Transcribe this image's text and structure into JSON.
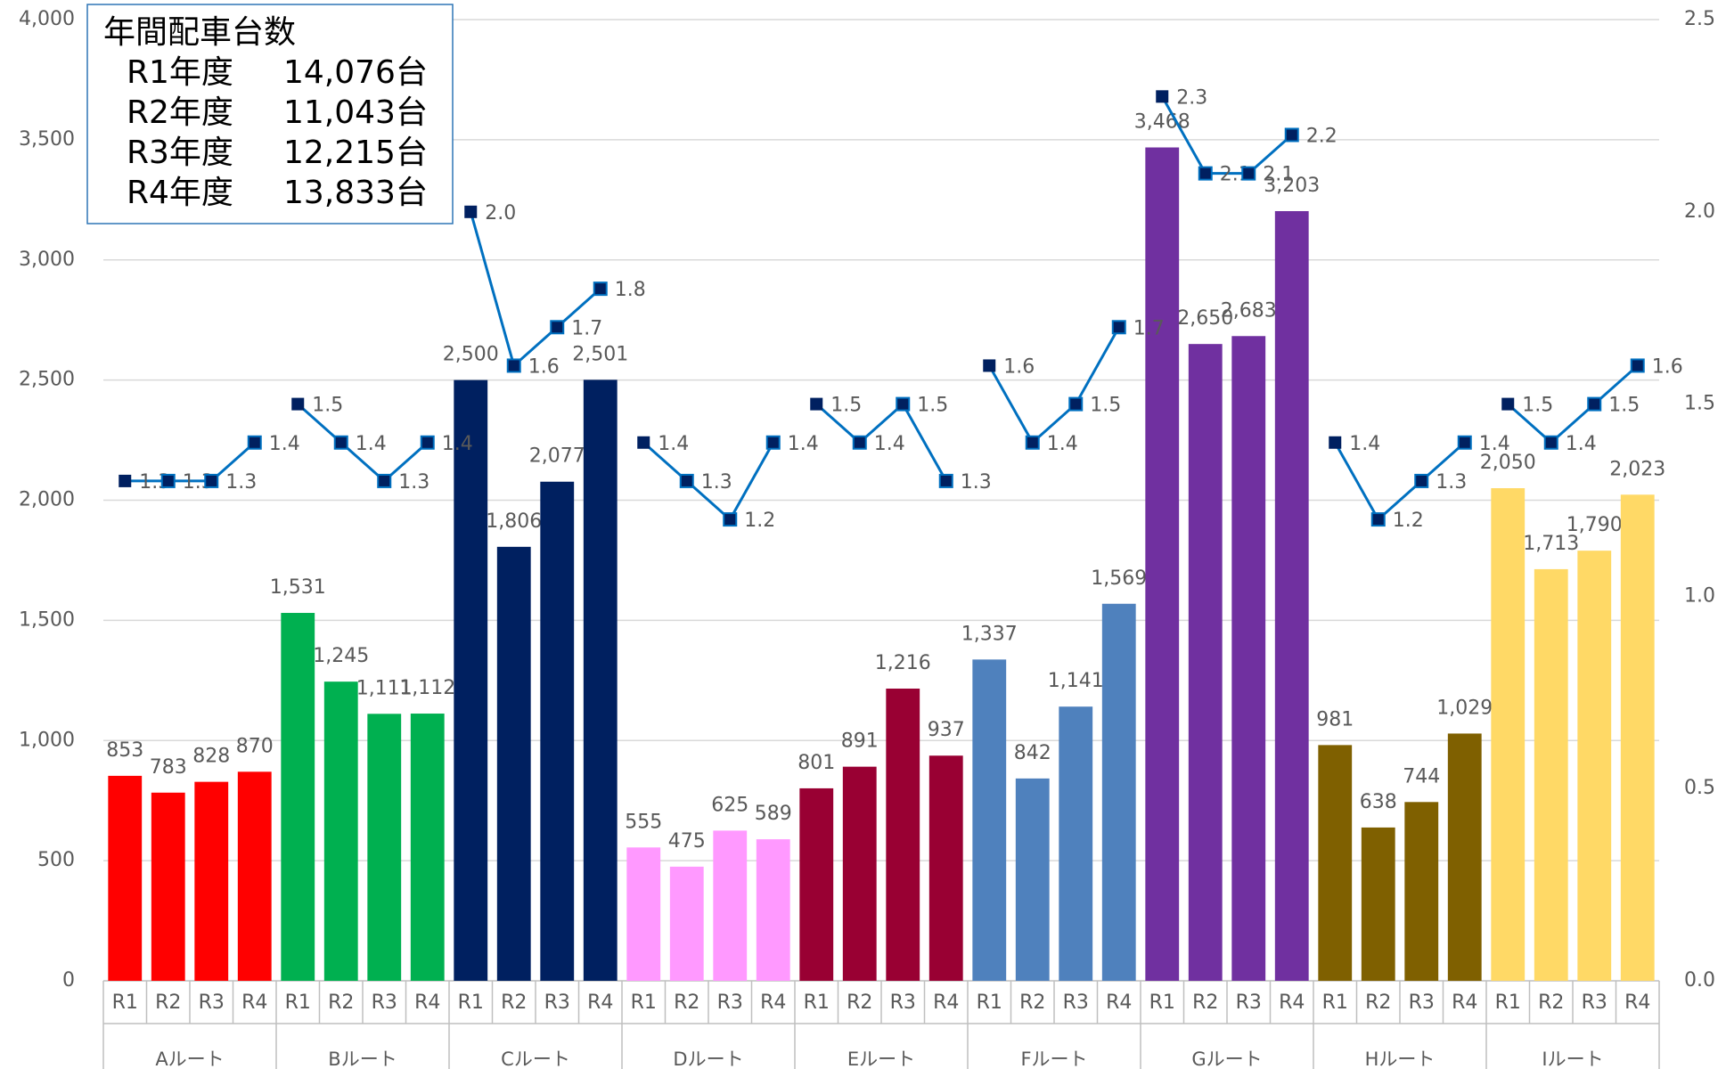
{
  "chart_data": {
    "type": "bar",
    "groups": [
      "Aルート",
      "Bルート",
      "Cルート",
      "Dルート",
      "Eルート",
      "Fルート",
      "Gルート",
      "Hルート",
      "Iルート"
    ],
    "group_colors": [
      "#ff0000",
      "#00b050",
      "#002060",
      "#ff99ff",
      "#990033",
      "#4f81bd",
      "#7030a0",
      "#7f6000",
      "#ffd966"
    ],
    "categories": [
      "R1",
      "R2",
      "R3",
      "R4",
      "R1",
      "R2",
      "R3",
      "R4",
      "R1",
      "R2",
      "R3",
      "R4",
      "R1",
      "R2",
      "R3",
      "R4",
      "R1",
      "R2",
      "R3",
      "R4",
      "R1",
      "R2",
      "R3",
      "R4",
      "R1",
      "R2",
      "R3",
      "R4",
      "R1",
      "R2",
      "R3",
      "R4",
      "R1",
      "R2",
      "R3",
      "R4"
    ],
    "series": [
      {
        "type": "bar",
        "values": [
          853,
          783,
          828,
          870,
          1531,
          1245,
          1111,
          1112,
          2500,
          1806,
          2077,
          2501,
          555,
          475,
          625,
          589,
          801,
          891,
          1216,
          937,
          1337,
          842,
          1141,
          1569,
          3468,
          2650,
          2683,
          3203,
          981,
          638,
          744,
          1029,
          2050,
          1713,
          1790,
          2023
        ],
        "value_labels": [
          "853",
          "783",
          "828",
          "870",
          "1,531",
          "1,245",
          "1,111",
          "1,112",
          "2,500",
          "1,806",
          "2,077",
          "2,501",
          "555",
          "475",
          "625",
          "589",
          "801",
          "891",
          "1,216",
          "937",
          "1,337",
          "842",
          "1,141",
          "1,569",
          "3,468",
          "2,650",
          "2,683",
          "3,203",
          "981",
          "638",
          "744",
          "1,029",
          "2,050",
          "1,713",
          "1,790",
          "2,023"
        ]
      },
      {
        "type": "line",
        "axis": "y2",
        "color": "#0070c0",
        "marker_color": "#002060",
        "values": [
          1.3,
          1.3,
          1.3,
          1.4,
          1.5,
          1.4,
          1.3,
          1.4,
          2.0,
          1.6,
          1.7,
          1.8,
          1.4,
          1.3,
          1.2,
          1.4,
          1.5,
          1.4,
          1.5,
          1.3,
          1.6,
          1.4,
          1.5,
          1.7,
          2.3,
          2.1,
          2.1,
          2.2,
          1.4,
          1.2,
          1.3,
          1.4,
          1.5,
          1.4,
          1.5,
          1.6
        ],
        "value_labels": [
          "1.3",
          "1.3",
          "1.3",
          "1.4",
          "1.5",
          "1.4",
          "1.3",
          "1.4",
          "2.0",
          "1.6",
          "1.7",
          "1.8",
          "1.4",
          "1.3",
          "1.2",
          "1.4",
          "1.5",
          "1.4",
          "1.5",
          "1.3",
          "1.6",
          "1.4",
          "1.5",
          "1.7",
          "2.3",
          "2.1",
          "2.1",
          "2.2",
          "1.4",
          "1.2",
          "1.3",
          "1.4",
          "1.5",
          "1.4",
          "1.5",
          "1.6"
        ]
      }
    ],
    "ylim": [
      0,
      4000
    ],
    "yticks": [
      0,
      500,
      {
        "value": 1000,
        "label": "1,000"
      },
      {
        "value": 1500,
        "label": "1,500"
      },
      {
        "value": 2000,
        "label": "2,000"
      },
      {
        "value": 2500,
        "label": "2,500"
      },
      {
        "value": 3000,
        "label": "3,000"
      },
      {
        "value": 3500,
        "label": "3,500"
      },
      {
        "value": 4000,
        "label": "4,000"
      }
    ],
    "y2lim": [
      0,
      2.5
    ],
    "y2ticks": [
      {
        "value": 0,
        "label": "0.0"
      },
      0.5,
      {
        "value": 1,
        "label": "1.0"
      },
      1.5,
      {
        "value": 2,
        "label": "2.0"
      },
      2.5
    ],
    "grid": true,
    "annotation": {
      "title": "年間配車台数",
      "rows": [
        [
          "R1年度",
          "14,076台"
        ],
        [
          "R2年度",
          "11,043台"
        ],
        [
          "R3年度",
          "12,215台"
        ],
        [
          "R4年度",
          "13,833台"
        ]
      ]
    }
  }
}
